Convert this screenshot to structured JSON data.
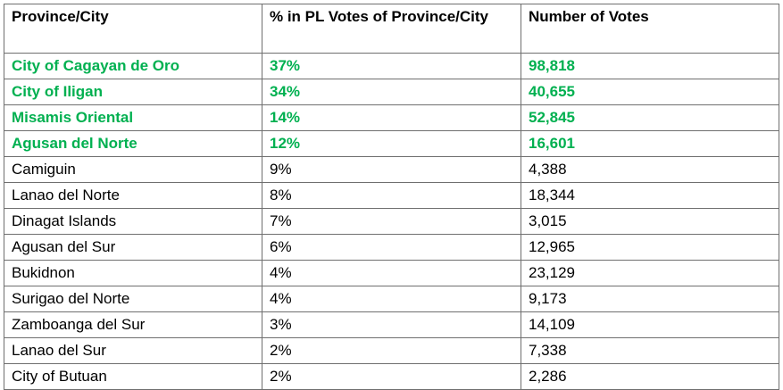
{
  "table": {
    "headers": [
      "Province/City",
      "% in PL Votes of Province/City",
      "Number of Votes"
    ],
    "highlight_color": "#00b050",
    "rows": [
      {
        "name": "City of Cagayan de Oro",
        "pct": "37%",
        "votes": "98,818",
        "highlight": true
      },
      {
        "name": "City of Iligan",
        "pct": "34%",
        "votes": "40,655",
        "highlight": true
      },
      {
        "name": "Misamis Oriental",
        "pct": "14%",
        "votes": "52,845",
        "highlight": true
      },
      {
        "name": "Agusan del Norte",
        "pct": "12%",
        "votes": "16,601",
        "highlight": true
      },
      {
        "name": "Camiguin",
        "pct": "9%",
        "votes": "4,388",
        "highlight": false
      },
      {
        "name": "Lanao del Norte",
        "pct": "8%",
        "votes": "18,344",
        "highlight": false
      },
      {
        "name": "Dinagat Islands",
        "pct": "7%",
        "votes": "3,015",
        "highlight": false
      },
      {
        "name": "Agusan del Sur",
        "pct": "6%",
        "votes": "12,965",
        "highlight": false
      },
      {
        "name": "Bukidnon",
        "pct": "4%",
        "votes": "23,129",
        "highlight": false
      },
      {
        "name": "Surigao del Norte",
        "pct": "4%",
        "votes": "9,173",
        "highlight": false
      },
      {
        "name": "Zamboanga del Sur",
        "pct": "3%",
        "votes": "14,109",
        "highlight": false
      },
      {
        "name": "Lanao del Sur",
        "pct": "2%",
        "votes": "7,338",
        "highlight": false
      },
      {
        "name": "City of Butuan",
        "pct": "2%",
        "votes": "2,286",
        "highlight": false
      }
    ]
  }
}
